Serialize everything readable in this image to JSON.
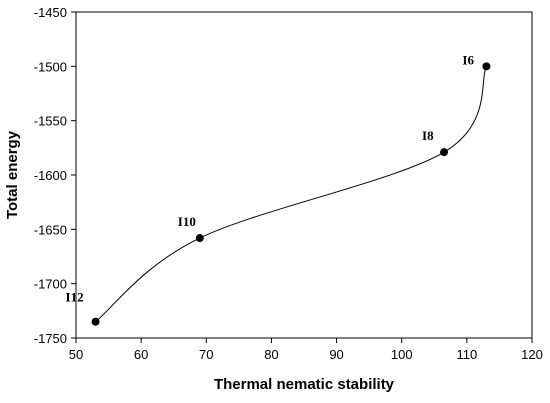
{
  "chart_data": {
    "type": "line",
    "xlabel": "Thermal nematic stability",
    "ylabel": "Total energy",
    "xlim": [
      50,
      120
    ],
    "ylim": [
      -1750,
      -1450
    ],
    "x_ticks": [
      50,
      60,
      70,
      80,
      90,
      100,
      110,
      120
    ],
    "y_ticks": [
      -1450,
      -1500,
      -1550,
      -1600,
      -1650,
      -1700,
      -1750
    ],
    "grid": false,
    "legend": "none",
    "series": [
      {
        "points": [
          {
            "label": "I12",
            "x": 53,
            "y": -1735
          },
          {
            "label": "I10",
            "x": 69,
            "y": -1658
          },
          {
            "label": "I8",
            "x": 106.5,
            "y": -1579
          },
          {
            "label": "I6",
            "x": 113,
            "y": -1500
          }
        ],
        "color": "#000000",
        "smooth": true
      }
    ]
  }
}
